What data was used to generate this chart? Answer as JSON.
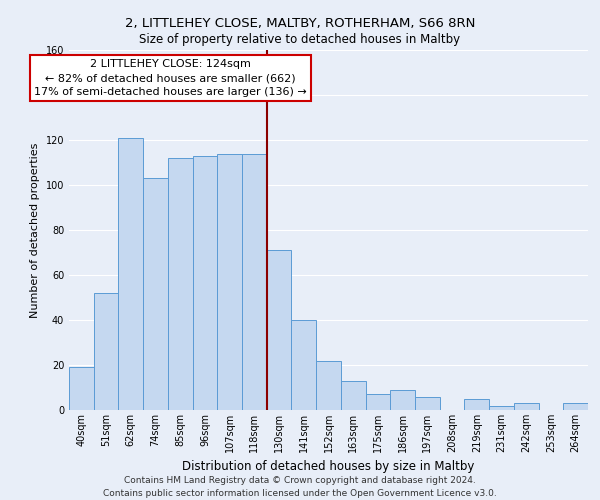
{
  "title": "2, LITTLEHEY CLOSE, MALTBY, ROTHERHAM, S66 8RN",
  "subtitle": "Size of property relative to detached houses in Maltby",
  "xlabel": "Distribution of detached houses by size in Maltby",
  "ylabel": "Number of detached properties",
  "bar_labels": [
    "40sqm",
    "51sqm",
    "62sqm",
    "74sqm",
    "85sqm",
    "96sqm",
    "107sqm",
    "118sqm",
    "130sqm",
    "141sqm",
    "152sqm",
    "163sqm",
    "175sqm",
    "186sqm",
    "197sqm",
    "208sqm",
    "219sqm",
    "231sqm",
    "242sqm",
    "253sqm",
    "264sqm"
  ],
  "bar_heights": [
    19,
    52,
    121,
    103,
    112,
    113,
    114,
    114,
    71,
    40,
    22,
    13,
    7,
    9,
    6,
    0,
    5,
    2,
    3,
    0,
    3
  ],
  "bar_color": "#c5d8f0",
  "bar_edge_color": "#5b9bd5",
  "vline_x": 7.5,
  "vline_color": "#8b0000",
  "annotation_title": "2 LITTLEHEY CLOSE: 124sqm",
  "annotation_line1": "← 82% of detached houses are smaller (662)",
  "annotation_line2": "17% of semi-detached houses are larger (136) →",
  "annotation_box_color": "#ffffff",
  "annotation_box_edge": "#cc0000",
  "ylim": [
    0,
    160
  ],
  "yticks": [
    0,
    20,
    40,
    60,
    80,
    100,
    120,
    140,
    160
  ],
  "footer1": "Contains HM Land Registry data © Crown copyright and database right 2024.",
  "footer2": "Contains public sector information licensed under the Open Government Licence v3.0.",
  "bg_color": "#e8eef8",
  "grid_color": "#ffffff",
  "title_fontsize": 9.5,
  "subtitle_fontsize": 8.5,
  "ylabel_fontsize": 8,
  "xlabel_fontsize": 8.5,
  "tick_fontsize": 7,
  "ann_fontsize": 8,
  "footer_fontsize": 6.5
}
